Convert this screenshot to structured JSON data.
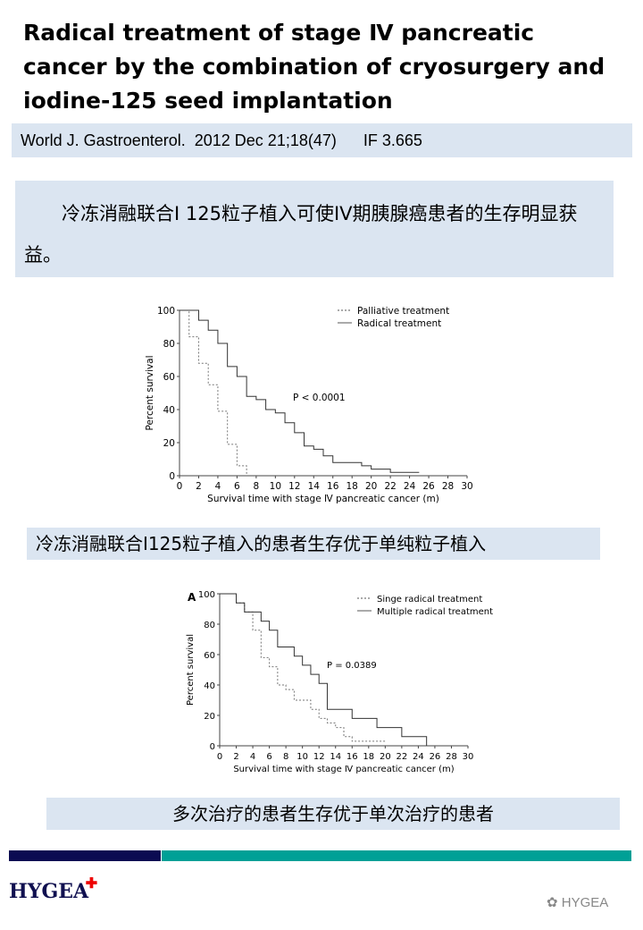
{
  "title_lines": [
    " Radical treatment of stage Ⅳ pancreatic",
    "cancer by the combination of cryosurgery and",
    "iodine-125 seed implantation"
  ],
  "citation": {
    "journal": "World J. Gastroenterol.",
    "date": "2012 Dec 21;18(47)",
    "impact_factor": "IF 3.665"
  },
  "finding_1": "冷冻消融联合I 125粒子植入可使IV期胰腺癌患者的生存明显获益。",
  "finding_2": "冷冻消融联合I125粒子植入的患者生存优于单纯粒子植入",
  "finding_3": "多次治疗的患者生存优于单次治疗的患者",
  "colors": {
    "band": "#dbe5f1",
    "navy": "#0b0b52",
    "teal": "#00a096",
    "line": "#555555"
  },
  "footer": {
    "logo": "HYGEA",
    "watermark": "HYGEA",
    "watermark_icon": "wechat-icon"
  },
  "chart_data": [
    {
      "type": "line",
      "step": true,
      "panel_label": "",
      "xlabel": "Survival time with stage Ⅳ pancreatic cancer (m)",
      "ylabel": "Percent survival",
      "xlim": [
        0,
        30
      ],
      "ylim": [
        0,
        100
      ],
      "xticks": [
        0,
        2,
        4,
        6,
        8,
        10,
        12,
        14,
        16,
        18,
        20,
        22,
        24,
        26,
        28,
        30
      ],
      "yticks": [
        0,
        20,
        40,
        60,
        80,
        100
      ],
      "annotation": "P < 0.0001",
      "legend_position": "top-right",
      "series": [
        {
          "name": "Palliative treatment",
          "style": "dotted",
          "x": [
            0,
            1,
            2,
            3,
            4,
            5,
            6,
            7
          ],
          "y": [
            100,
            84,
            68,
            55,
            39,
            19,
            6,
            0
          ]
        },
        {
          "name": "Radical treatment",
          "style": "solid",
          "x": [
            0,
            2,
            3,
            4,
            5,
            6,
            7,
            8,
            9,
            10,
            11,
            12,
            13,
            14,
            15,
            16,
            19,
            20,
            22,
            25
          ],
          "y": [
            100,
            94,
            88,
            80,
            66,
            60,
            48,
            46,
            40,
            38,
            32,
            26,
            18,
            16,
            12,
            8,
            6,
            4,
            2,
            2
          ]
        }
      ]
    },
    {
      "type": "line",
      "step": true,
      "panel_label": "A",
      "xlabel": "Survival time with stage Ⅳ pancreatic cancer (m)",
      "ylabel": "Percent survival",
      "xlim": [
        0,
        30
      ],
      "ylim": [
        0,
        100
      ],
      "xticks": [
        0,
        2,
        4,
        6,
        8,
        10,
        12,
        14,
        16,
        18,
        20,
        22,
        24,
        26,
        28,
        30
      ],
      "yticks": [
        0,
        20,
        40,
        60,
        80,
        100
      ],
      "annotation": "P = 0.0389",
      "legend_position": "top-right",
      "series": [
        {
          "name": "Singe radical treatment",
          "style": "dotted",
          "x": [
            0,
            2,
            3,
            4,
            5,
            6,
            7,
            8,
            9,
            11,
            12,
            13,
            14,
            15,
            16,
            20
          ],
          "y": [
            100,
            94,
            88,
            76,
            58,
            52,
            40,
            37,
            30,
            24,
            18,
            15,
            12,
            6,
            3,
            3
          ]
        },
        {
          "name": "Multiple radical treatment",
          "style": "solid",
          "x": [
            0,
            2,
            3,
            5,
            6,
            7,
            9,
            10,
            11,
            12,
            13,
            16,
            19,
            22,
            25
          ],
          "y": [
            100,
            94,
            88,
            82,
            76,
            65,
            59,
            53,
            47,
            41,
            24,
            18,
            12,
            6,
            0
          ]
        }
      ]
    }
  ]
}
